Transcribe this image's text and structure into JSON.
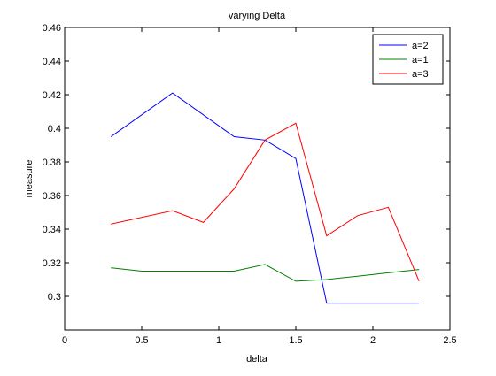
{
  "chart_data": {
    "type": "line",
    "title": "varying Delta",
    "xlabel": "delta",
    "ylabel": "measure",
    "xlim": [
      0,
      2.5
    ],
    "ylim": [
      0.28,
      0.46
    ],
    "xticks": [
      0,
      0.5,
      1,
      1.5,
      2,
      2.5
    ],
    "xtick_labels": [
      "0",
      "0.5",
      "1",
      "1.5",
      "2",
      "2.5"
    ],
    "yticks": [
      0.3,
      0.32,
      0.34,
      0.36,
      0.38,
      0.4,
      0.42,
      0.44,
      0.46
    ],
    "ytick_labels": [
      "0.3",
      "0.32",
      "0.34",
      "0.36",
      "0.38",
      "0.4",
      "0.42",
      "0.44",
      "0.46"
    ],
    "grid": false,
    "legend_position": "top-right",
    "series": [
      {
        "name": "a=2",
        "color": "#0000ff",
        "x": [
          0.3,
          0.7,
          1.1,
          1.3,
          1.5,
          1.7,
          2.3
        ],
        "y": [
          0.395,
          0.421,
          0.395,
          0.393,
          0.382,
          0.296,
          0.296
        ]
      },
      {
        "name": "a=1",
        "color": "#008000",
        "x": [
          0.3,
          0.5,
          0.7,
          0.9,
          1.1,
          1.3,
          1.5,
          1.7,
          1.9,
          2.1,
          2.3
        ],
        "y": [
          0.317,
          0.315,
          0.315,
          0.315,
          0.315,
          0.319,
          0.309,
          0.31,
          0.312,
          0.314,
          0.316
        ]
      },
      {
        "name": "a=3",
        "color": "#ff0000",
        "x": [
          0.3,
          0.7,
          0.9,
          1.1,
          1.3,
          1.5,
          1.7,
          1.9,
          2.1,
          2.3
        ],
        "y": [
          0.343,
          0.351,
          0.344,
          0.364,
          0.393,
          0.403,
          0.336,
          0.348,
          0.353,
          0.309
        ]
      }
    ]
  }
}
